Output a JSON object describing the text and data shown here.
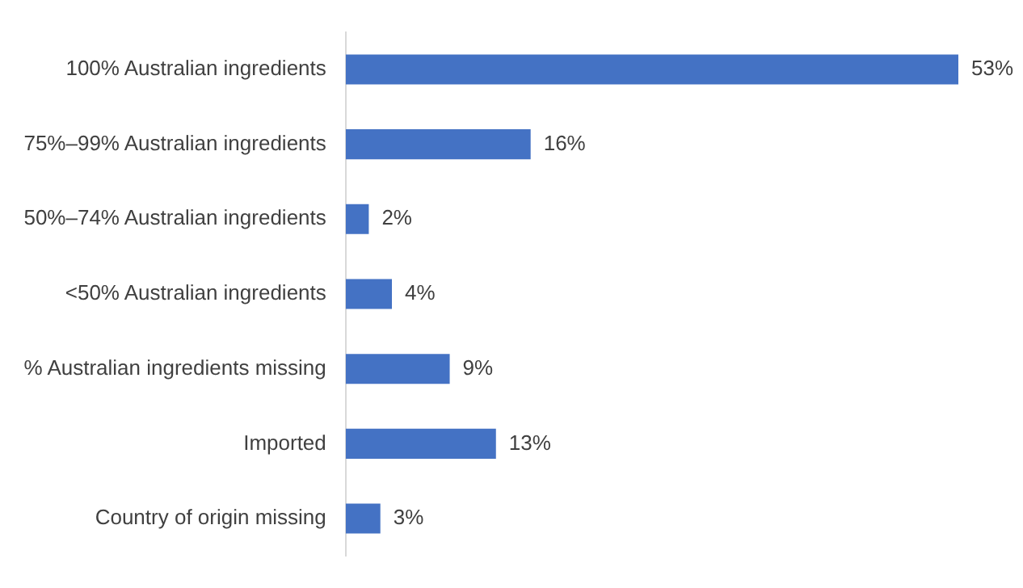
{
  "chart_data": {
    "type": "bar",
    "orientation": "horizontal",
    "categories": [
      "100% Australian ingredients",
      "75%–99% Australian ingredients",
      "50%–74% Australian ingredients",
      "<50% Australian ingredients",
      "% Australian ingredients missing",
      "Imported",
      "Country of origin missing"
    ],
    "values": [
      53,
      16,
      2,
      4,
      9,
      13,
      3
    ],
    "color": "#4472c4",
    "value_labels": [
      "53%",
      "16%",
      "2%",
      "4%",
      "9%",
      "13%",
      "3%"
    ]
  }
}
